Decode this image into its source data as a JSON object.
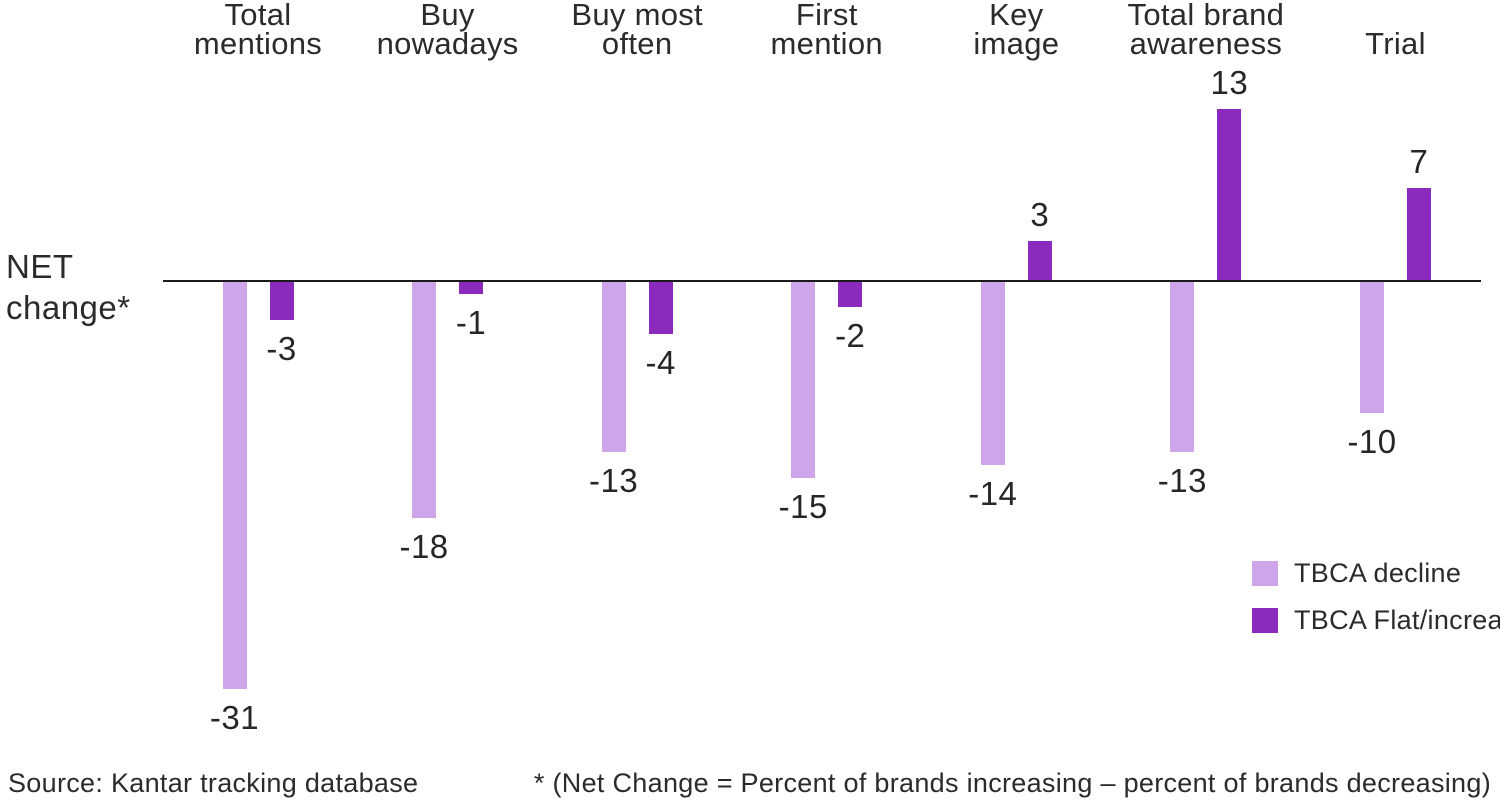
{
  "page": {
    "background_color": "#ffffff",
    "text_color": "#2b2b2b"
  },
  "axis_label": {
    "line1": "NET",
    "line2": "change*"
  },
  "legend": {
    "items": [
      {
        "label": "TBCA decline",
        "color": "#CEA5E9"
      },
      {
        "label": "TBCA Flat/increase",
        "color": "#8A2BBD"
      }
    ]
  },
  "footer": {
    "source": "Source: Kantar tracking database",
    "footnote": "* (Net Change = Percent of brands increasing – percent of brands decreasing)"
  },
  "chart_data": {
    "type": "bar",
    "title": "",
    "xlabel": "",
    "ylabel": "NET change*",
    "ylim": [
      -35,
      15
    ],
    "grid": false,
    "baseline": 0,
    "legend_position": "right-middle",
    "categories": [
      "Total mentions",
      "Buy nowadays",
      "Buy most often",
      "First mention",
      "Key image",
      "Total brand awareness",
      "Trial"
    ],
    "category_label_lines": [
      [
        "Total",
        "mentions"
      ],
      [
        "Buy",
        "nowadays"
      ],
      [
        "Buy most",
        "often"
      ],
      [
        "First",
        "mention"
      ],
      [
        "Key",
        "image"
      ],
      [
        "Total brand",
        "awareness"
      ],
      [
        "Trial"
      ]
    ],
    "series": [
      {
        "name": "TBCA decline",
        "color": "#CEA5E9",
        "values": [
          -31,
          -18,
          -13,
          -15,
          -14,
          -13,
          -10
        ]
      },
      {
        "name": "TBCA Flat/increase",
        "color": "#8A2BBD",
        "values": [
          -3,
          -1,
          -4,
          -2,
          3,
          13,
          7
        ]
      }
    ]
  }
}
